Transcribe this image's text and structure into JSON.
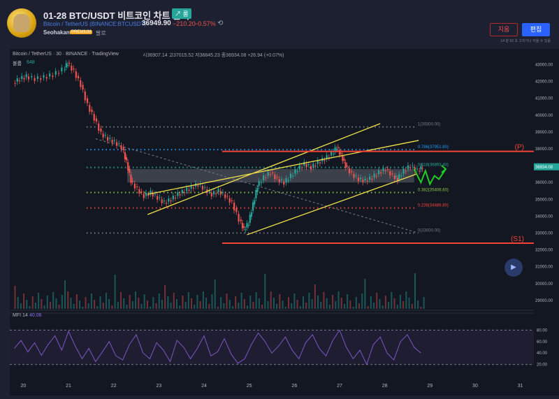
{
  "header": {
    "title": "01-28 BTC/USDT 비트코인 차트 분석",
    "badge": "↗ 롱",
    "symbol_name": "Bitcoin / TetherUS",
    "symbol_code": "(BINANCE:BTCUSDT)",
    "price": "36949.90",
    "change": "−210.20",
    "change_pct": "−0.57%",
    "author": "Seohakant",
    "premium_badge": "PREMIUM",
    "follow_label": "팔로",
    "delete_button": "지움",
    "edit_button": "편집",
    "edit_note": "14 분 52 초 고치거나 지울 수 있음",
    "colors": {
      "badge": "#26a69a",
      "edit_button": "#2962ff",
      "negative": "#ef5350"
    }
  },
  "chart_data": [
    {
      "type": "candlestick",
      "title": "Bitcoin / TetherUS · 30 · BINANCE · TradingView",
      "ohlc_label": "시36907.14 고37015.52 저36845.23 종36934.08 +26.94 (+0.07%)",
      "volume_label": "볼륨",
      "volume_value": "648",
      "last_price_label": "36934.08",
      "x_ticks": [
        "20",
        "21",
        "22",
        "23",
        "24",
        "25",
        "26",
        "27",
        "28",
        "29",
        "30",
        "31"
      ],
      "y_ticks": [
        "43000.00",
        "42000.00",
        "41000.00",
        "40000.00",
        "39000.00",
        "38000.00",
        "37000.00",
        "36000.00",
        "35000.00",
        "34000.00",
        "33000.00",
        "32000.00",
        "31000.00",
        "30000.00",
        "29000.00"
      ],
      "ylim": [
        28500,
        43600
      ],
      "close_path": [
        [
          19.8,
          41900
        ],
        [
          19.95,
          42150
        ],
        [
          20.1,
          42300
        ],
        [
          20.3,
          42150
        ],
        [
          20.5,
          42250
        ],
        [
          20.7,
          42400
        ],
        [
          20.9,
          42700
        ],
        [
          21.0,
          43100
        ],
        [
          21.15,
          42600
        ],
        [
          21.3,
          41800
        ],
        [
          21.45,
          40600
        ],
        [
          21.6,
          39800
        ],
        [
          21.75,
          38900
        ],
        [
          21.9,
          38600
        ],
        [
          22.05,
          38400
        ],
        [
          22.2,
          38100
        ],
        [
          22.3,
          37200
        ],
        [
          22.4,
          36100
        ],
        [
          22.55,
          35600
        ],
        [
          22.7,
          35200
        ],
        [
          22.85,
          35400
        ],
        [
          23.0,
          35100
        ],
        [
          23.15,
          34800
        ],
        [
          23.3,
          35000
        ],
        [
          23.45,
          35300
        ],
        [
          23.6,
          35500
        ],
        [
          23.75,
          35700
        ],
        [
          23.9,
          35900
        ],
        [
          24.05,
          35600
        ],
        [
          24.2,
          35300
        ],
        [
          24.35,
          35500
        ],
        [
          24.5,
          35200
        ],
        [
          24.65,
          34800
        ],
        [
          24.8,
          33800
        ],
        [
          24.9,
          33200
        ],
        [
          25.0,
          33600
        ],
        [
          25.1,
          34700
        ],
        [
          25.2,
          35800
        ],
        [
          25.35,
          36300
        ],
        [
          25.5,
          36600
        ],
        [
          25.65,
          36200
        ],
        [
          25.8,
          36000
        ],
        [
          25.95,
          36400
        ],
        [
          26.1,
          36800
        ],
        [
          26.25,
          37100
        ],
        [
          26.4,
          36900
        ],
        [
          26.55,
          37200
        ],
        [
          26.7,
          37400
        ],
        [
          26.85,
          37700
        ],
        [
          26.95,
          38100
        ],
        [
          27.05,
          37600
        ],
        [
          27.15,
          37000
        ],
        [
          27.3,
          36500
        ],
        [
          27.45,
          36200
        ],
        [
          27.6,
          36100
        ],
        [
          27.75,
          36300
        ],
        [
          27.9,
          36600
        ],
        [
          28.05,
          36800
        ],
        [
          28.2,
          36400
        ],
        [
          28.3,
          36200
        ],
        [
          28.45,
          36700
        ],
        [
          28.6,
          37000
        ],
        [
          28.75,
          36700
        ],
        [
          28.85,
          36934
        ]
      ],
      "fib_levels": [
        {
          "label": "1(39300.00)",
          "value": 39300,
          "color": "#787b86"
        },
        {
          "label": "0.786(37951.80)",
          "value": 37951.8,
          "color": "#2196f3"
        },
        {
          "label": "0.618(36893.40)",
          "value": 36893.4,
          "color": "#26a69a"
        },
        {
          "label": "0.382(35406.60)",
          "value": 35406.6,
          "color": "#8bc34a"
        },
        {
          "label": "0.236(34486.80)",
          "value": 34486.8,
          "color": "#f44336"
        },
        {
          "label": "0(33000.00)",
          "value": 33000,
          "color": "#787b86"
        }
      ],
      "zone": {
        "from": 36000,
        "to": 36800,
        "x_from": 22.3,
        "x_to": 28.65
      },
      "levels": [
        {
          "label": "(P)",
          "value": 37850,
          "x_from": 24.4,
          "color": "#f44336"
        },
        {
          "label": "(S1)",
          "value": 32400,
          "x_from": 24.4,
          "color": "#f44336"
        }
      ],
      "channel_lines": [
        {
          "x": [
            22.75,
            27.9
          ],
          "y": [
            34100,
            39500
          ]
        },
        {
          "x": [
            22.75,
            28.75
          ],
          "y": [
            35300,
            38500
          ]
        },
        {
          "x": [
            24.95,
            28.7
          ],
          "y": [
            32900,
            36500
          ]
        }
      ],
      "trend_line": {
        "x": [
          21.6,
          28.75
        ],
        "y": [
          38600,
          33000
        ]
      },
      "projection": {
        "x": [
          28.65,
          28.8,
          28.9,
          29.0,
          29.1,
          29.2,
          29.35
        ],
        "y": [
          36800,
          36000,
          36700,
          35900,
          36400,
          36200,
          36800
        ],
        "color": "#22cc22"
      },
      "annotation": "S1"
    },
    {
      "type": "line",
      "title": "MFI",
      "period": "14",
      "value_label": "40.06",
      "y_ticks": [
        "80.00",
        "60.00",
        "40.00",
        "20.00"
      ],
      "ylim": [
        0,
        100
      ],
      "band": [
        20,
        80
      ],
      "x": [
        19.8,
        19.95,
        20.1,
        20.25,
        20.4,
        20.55,
        20.7,
        20.85,
        21.0,
        21.15,
        21.3,
        21.45,
        21.6,
        21.75,
        21.9,
        22.05,
        22.2,
        22.35,
        22.5,
        22.65,
        22.8,
        22.95,
        23.1,
        23.25,
        23.4,
        23.55,
        23.7,
        23.85,
        24.0,
        24.15,
        24.3,
        24.45,
        24.6,
        24.75,
        24.9,
        25.05,
        25.2,
        25.35,
        25.5,
        25.65,
        25.8,
        25.95,
        26.1,
        26.25,
        26.4,
        26.55,
        26.7,
        26.85,
        27.0,
        27.15,
        27.3,
        27.45,
        27.6,
        27.75,
        27.9,
        28.05,
        28.2,
        28.35,
        28.5,
        28.65,
        28.8
      ],
      "values": [
        48,
        62,
        42,
        58,
        36,
        55,
        70,
        45,
        78,
        52,
        30,
        48,
        25,
        42,
        60,
        35,
        28,
        55,
        72,
        40,
        30,
        58,
        45,
        25,
        62,
        50,
        30,
        48,
        70,
        35,
        42,
        65,
        38,
        22,
        30,
        55,
        75,
        60,
        40,
        52,
        68,
        45,
        30,
        58,
        72,
        48,
        35,
        62,
        80,
        50,
        30,
        45,
        20,
        55,
        68,
        40,
        28,
        60,
        72,
        50,
        40.06
      ]
    }
  ]
}
